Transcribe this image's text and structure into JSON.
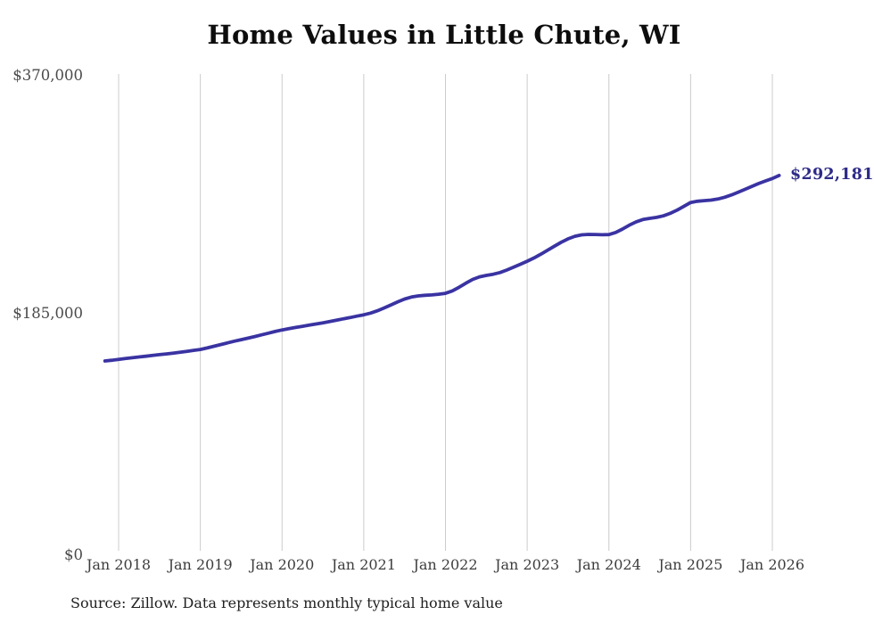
{
  "title": "Home Values in Little Chute, WI",
  "source_note": "Source: Zillow. Data represents monthly typical home value",
  "chart_data": {
    "type": "line",
    "title": "Home Values in Little Chute, WI",
    "xlabel": "",
    "ylabel": "",
    "ylim": [
      0,
      370000
    ],
    "grid": "vertical-only",
    "legend_position": "none",
    "x_ticks": [
      "Jan 2018",
      "Jan 2019",
      "Jan 2020",
      "Jan 2021",
      "Jan 2022",
      "Jan 2023",
      "Jan 2024",
      "Jan 2025",
      "Jan 2026"
    ],
    "y_ticks": [
      {
        "label": "$370,000",
        "value": 370000
      },
      {
        "label": "$185,000",
        "value": 185000
      },
      {
        "label": "$0",
        "value": 0
      }
    ],
    "end_label": "$292,181",
    "latest_value": 292181,
    "colors": {
      "line": "#3a33a2",
      "end_label": "#2d2a88",
      "grid": "#cccccc",
      "axis_text": "#3d3d3d",
      "y_axis_text": "#4a4a4a",
      "title_text": "#0d0d0d"
    },
    "series": [
      {
        "name": "Typical home value",
        "frequency": "monthly",
        "start_date": "2017-11",
        "values": [
          148800,
          149400,
          150100,
          150700,
          151300,
          151900,
          152500,
          153100,
          153700,
          154300,
          154900,
          155600,
          156300,
          157000,
          157700,
          158900,
          160200,
          161500,
          162800,
          164100,
          165300,
          166500,
          167700,
          169000,
          170300,
          171600,
          172800,
          173800,
          174700,
          175600,
          176500,
          177400,
          178300,
          179300,
          180300,
          181400,
          182400,
          183500,
          184500,
          185800,
          187600,
          189800,
          192200,
          194600,
          196700,
          198200,
          199100,
          199600,
          199900,
          200400,
          201100,
          203000,
          205800,
          209000,
          211900,
          213900,
          215000,
          215900,
          217200,
          219100,
          221300,
          223600,
          225900,
          228500,
          231400,
          234500,
          237600,
          240600,
          243200,
          245200,
          246300,
          246700,
          246600,
          246400,
          246500,
          248200,
          250800,
          253800,
          256400,
          258200,
          259100,
          259800,
          261000,
          262900,
          265400,
          268300,
          271300,
          272300,
          272800,
          273200,
          274000,
          275400,
          277200,
          279300,
          281500,
          283800,
          286000,
          288000,
          289900,
          292181
        ]
      }
    ]
  }
}
